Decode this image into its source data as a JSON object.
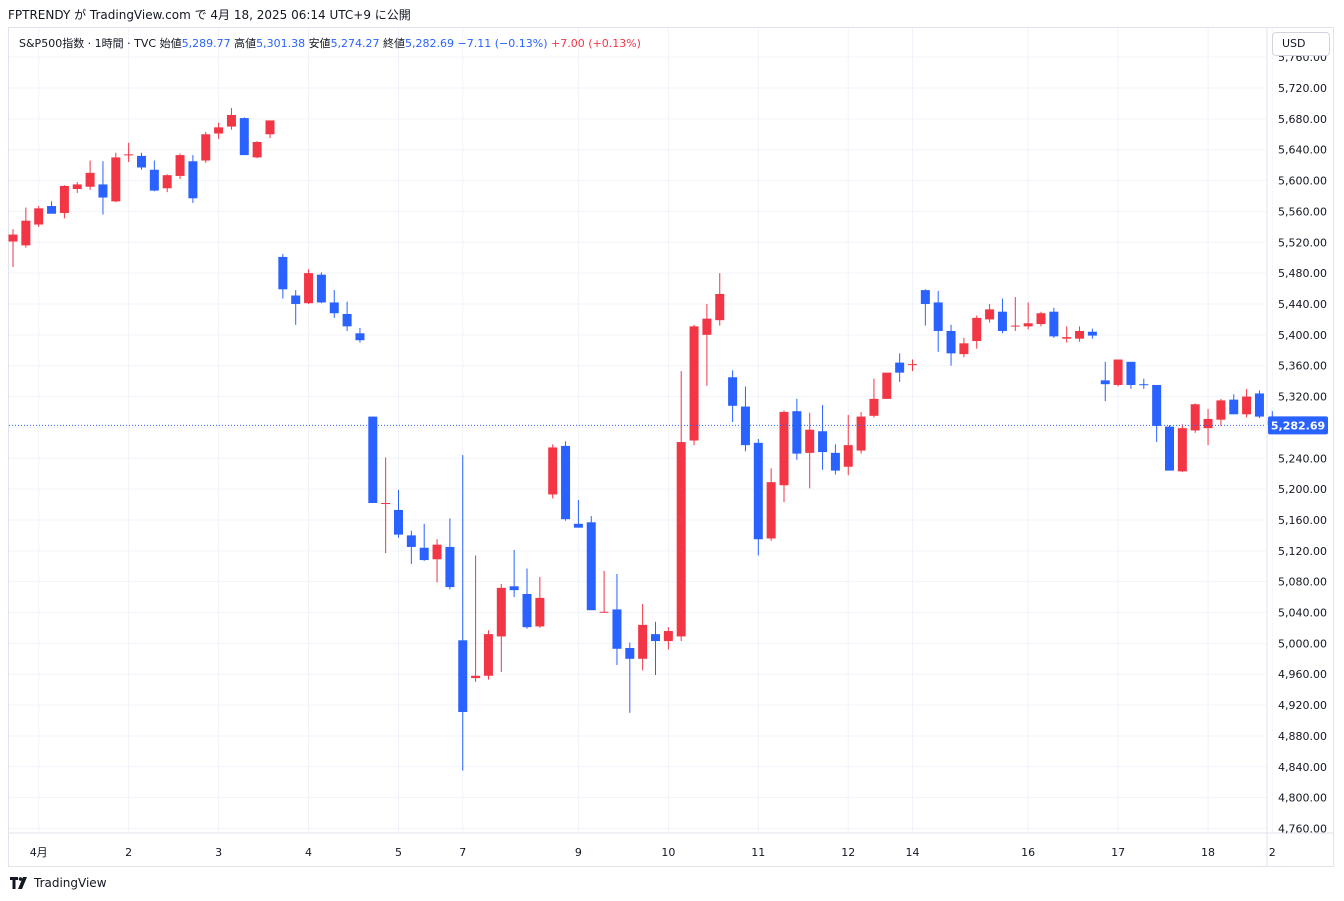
{
  "header": {
    "text": "FPTRENDY が TradingView.com で 4月 18, 2025 06:14 UTC+9 に公開"
  },
  "legend": {
    "symbol": "S&P500指数 · 1時間 · TVC",
    "open_label": "始値",
    "open": "5,289.77",
    "high_label": "高値",
    "high": "5,301.38",
    "low_label": "安値",
    "low": "5,274.27",
    "close_label": "終値",
    "close": "5,282.69",
    "change": "−7.11 (−0.13%)",
    "change2": "+7.00 (+0.13%)"
  },
  "currency": "USD",
  "price_tag": "5,282.69",
  "footer": {
    "brand": "TradingView"
  },
  "colors": {
    "up": "#f23645",
    "down": "#2962ff",
    "grid": "#f0f3fa",
    "tag": "#2962ff"
  },
  "chart_data": {
    "type": "candlestick",
    "ylim": [
      4740,
      5760
    ],
    "y_ticks": [
      4760,
      4800,
      4840,
      4880,
      4920,
      4960,
      5000,
      5040,
      5080,
      5120,
      5160,
      5200,
      5240,
      5280,
      5320,
      5360,
      5400,
      5440,
      5480,
      5520,
      5560,
      5600,
      5640,
      5680,
      5720,
      5760
    ],
    "y_tick_labels": [
      "4,760.00",
      "4,800.00",
      "4,840.00",
      "4,880.00",
      "4,920.00",
      "4,960.00",
      "5,000.00",
      "5,040.00",
      "5,080.00",
      "5,120.00",
      "5,160.00",
      "5,200.00",
      "5,240.00",
      "5,280.00",
      "5,320.00",
      "5,360.00",
      "5,400.00",
      "5,440.00",
      "5,480.00",
      "5,520.00",
      "5,560.00",
      "5,600.00",
      "5,640.00",
      "5,680.00",
      "5,720.00",
      "5,760.00"
    ],
    "x_labels": [
      {
        "label": "4月",
        "index": 2
      },
      {
        "label": "2",
        "index": 9
      },
      {
        "label": "3",
        "index": 16
      },
      {
        "label": "4",
        "index": 23
      },
      {
        "label": "5",
        "index": 30
      },
      {
        "label": "7",
        "index": 35
      },
      {
        "label": "9",
        "index": 44
      },
      {
        "label": "10",
        "index": 51
      },
      {
        "label": "11",
        "index": 58
      },
      {
        "label": "12",
        "index": 65
      },
      {
        "label": "14",
        "index": 70
      },
      {
        "label": "16",
        "index": 79
      },
      {
        "label": "17",
        "index": 86
      },
      {
        "label": "18",
        "index": 93
      },
      {
        "label": "2",
        "index": 98
      }
    ],
    "last_close": 5282.69,
    "candles": [
      [
        5521,
        5537,
        5488,
        5530
      ],
      [
        5516,
        5565,
        5513,
        5548
      ],
      [
        5543,
        5567,
        5540,
        5564
      ],
      [
        5567,
        5573,
        5558,
        5557
      ],
      [
        5558,
        5594,
        5551,
        5593
      ],
      [
        5589,
        5598,
        5584,
        5595
      ],
      [
        5592,
        5626,
        5588,
        5610
      ],
      [
        5595,
        5625,
        5556,
        5578
      ],
      [
        5573,
        5636,
        5572,
        5630
      ],
      [
        5633,
        5649,
        5624,
        5634
      ],
      [
        5632,
        5636,
        5614,
        5617
      ],
      [
        5614,
        5626,
        5586,
        5587
      ],
      [
        5590,
        5608,
        5585,
        5607
      ],
      [
        5606,
        5635,
        5602,
        5633
      ],
      [
        5625,
        5633,
        5571,
        5577
      ],
      [
        5626,
        5663,
        5623,
        5660
      ],
      [
        5661,
        5675,
        5654,
        5669
      ],
      [
        5670,
        5694,
        5666,
        5685
      ],
      [
        5681,
        5682,
        5633,
        5633
      ],
      [
        5630,
        5651,
        5629,
        5650
      ],
      [
        5660,
        5677,
        5655,
        5678
      ],
      [
        5501,
        5505,
        5447,
        5459
      ],
      [
        5451,
        5458,
        5413,
        5440
      ],
      [
        5441,
        5485,
        5440,
        5480
      ],
      [
        5478,
        5481,
        5441,
        5442
      ],
      [
        5442,
        5458,
        5422,
        5428
      ],
      [
        5427,
        5443,
        5405,
        5411
      ],
      [
        5402,
        5409,
        5390,
        5393
      ],
      [
        5294,
        5294,
        5182,
        5182
      ],
      [
        5182,
        5241,
        5117,
        5182
      ],
      [
        5173,
        5199,
        5137,
        5141
      ],
      [
        5140,
        5146,
        5103,
        5125
      ],
      [
        5124,
        5155,
        5107,
        5108
      ],
      [
        5109,
        5135,
        5079,
        5128
      ],
      [
        5125,
        5162,
        5070,
        5073
      ],
      [
        5004,
        5244,
        4835,
        4911
      ],
      [
        4955,
        5114,
        4950,
        4958
      ],
      [
        4958,
        5017,
        4953,
        5012
      ],
      [
        5009,
        5077,
        4963,
        5072
      ],
      [
        5074,
        5121,
        5060,
        5069
      ],
      [
        5064,
        5097,
        5019,
        5021
      ],
      [
        5022,
        5086,
        5020,
        5059
      ],
      [
        5193,
        5258,
        5188,
        5254
      ],
      [
        5256,
        5262,
        5159,
        5161
      ],
      [
        5155,
        5186,
        5150,
        5150
      ],
      [
        5157,
        5165,
        5043,
        5043
      ],
      [
        5041,
        5094,
        5040,
        5041
      ],
      [
        5044,
        5090,
        4972,
        4993
      ],
      [
        4994,
        5001,
        4910,
        4980
      ],
      [
        4980,
        5051,
        4965,
        5024
      ],
      [
        5012,
        5028,
        4959,
        5003
      ],
      [
        5003,
        5021,
        4992,
        5016
      ],
      [
        5009,
        5353,
        5003,
        5261
      ],
      [
        5263,
        5413,
        5257,
        5411
      ],
      [
        5400,
        5440,
        5334,
        5421
      ],
      [
        5419,
        5480,
        5412,
        5453
      ],
      [
        5345,
        5354,
        5287,
        5308
      ],
      [
        5307,
        5333,
        5249,
        5257
      ],
      [
        5260,
        5265,
        5114,
        5135
      ],
      [
        5136,
        5227,
        5133,
        5209
      ],
      [
        5205,
        5302,
        5183,
        5300
      ],
      [
        5301,
        5317,
        5238,
        5246
      ],
      [
        5247,
        5299,
        5201,
        5277
      ],
      [
        5275,
        5309,
        5225,
        5248
      ],
      [
        5247,
        5258,
        5219,
        5224
      ],
      [
        5229,
        5296,
        5218,
        5257
      ],
      [
        5250,
        5300,
        5246,
        5294
      ],
      [
        5295,
        5343,
        5293,
        5317
      ],
      [
        5317,
        5350,
        5317,
        5351
      ],
      [
        5364,
        5376,
        5339,
        5351
      ],
      [
        5361,
        5368,
        5353,
        5362
      ],
      [
        5458,
        5459,
        5412,
        5440
      ],
      [
        5442,
        5457,
        5378,
        5405
      ],
      [
        5405,
        5413,
        5360,
        5376
      ],
      [
        5375,
        5396,
        5371,
        5389
      ],
      [
        5392,
        5425,
        5382,
        5422
      ],
      [
        5420,
        5440,
        5416,
        5433
      ],
      [
        5430,
        5447,
        5402,
        5405
      ],
      [
        5412,
        5449,
        5405,
        5412
      ],
      [
        5411,
        5442,
        5407,
        5415
      ],
      [
        5414,
        5430,
        5411,
        5428
      ],
      [
        5430,
        5435,
        5396,
        5398
      ],
      [
        5395,
        5411,
        5390,
        5397
      ],
      [
        5395,
        5411,
        5391,
        5405
      ],
      [
        5404,
        5408,
        5395,
        5399
      ],
      [
        5341,
        5365,
        5314,
        5336
      ],
      [
        5335,
        5368,
        5333,
        5368
      ],
      [
        5365,
        5365,
        5330,
        5335
      ],
      [
        5336,
        5343,
        5330,
        5335
      ],
      [
        5335,
        5335,
        5261,
        5282
      ],
      [
        5281,
        5283,
        5224,
        5224
      ],
      [
        5223,
        5284,
        5222,
        5279
      ],
      [
        5276,
        5311,
        5273,
        5310
      ],
      [
        5279,
        5304,
        5257,
        5291
      ],
      [
        5290,
        5317,
        5282,
        5315
      ],
      [
        5316,
        5323,
        5297,
        5297
      ],
      [
        5297,
        5330,
        5293,
        5320
      ],
      [
        5324,
        5328,
        5292,
        5294
      ],
      [
        5289,
        5301,
        5274,
        5283
      ]
    ]
  }
}
